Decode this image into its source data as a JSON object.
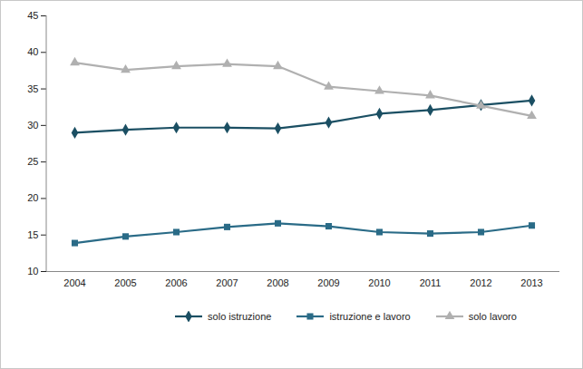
{
  "chart_data": {
    "type": "line",
    "x": [
      2004,
      2005,
      2006,
      2007,
      2008,
      2009,
      2010,
      2011,
      2012,
      2013
    ],
    "series": [
      {
        "name": "solo istruzione",
        "color": "#1b4f63",
        "marker": "diamond",
        "values": [
          29.0,
          29.4,
          29.7,
          29.7,
          29.6,
          30.4,
          31.6,
          32.1,
          32.8,
          33.4
        ]
      },
      {
        "name": "istruzione e lavoro",
        "color": "#2a6b87",
        "marker": "square",
        "values": [
          13.9,
          14.8,
          15.4,
          16.1,
          16.6,
          16.2,
          15.4,
          15.2,
          15.4,
          16.3
        ]
      },
      {
        "name": "solo lavoro",
        "color": "#b0b0b0",
        "marker": "triangle",
        "values": [
          38.6,
          37.6,
          38.1,
          38.4,
          38.1,
          35.3,
          34.7,
          34.1,
          32.7,
          31.3
        ]
      }
    ],
    "ylim": [
      10,
      45
    ],
    "yticks": [
      10,
      15,
      20,
      25,
      30,
      35,
      40,
      45
    ],
    "grid": false,
    "legend": "bottom"
  }
}
